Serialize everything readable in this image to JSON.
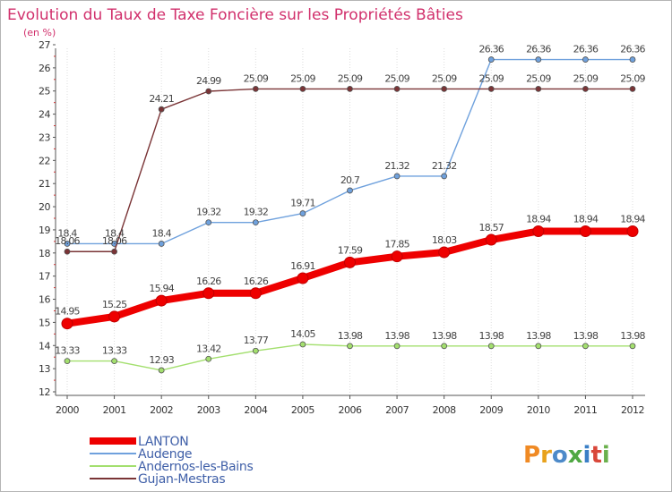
{
  "chart_data": {
    "type": "line",
    "title": "Evolution du Taux de Taxe Foncière sur les Propriétés Bâties",
    "ylabel": "(en %)",
    "xlabel": "",
    "categories": [
      "2000",
      "2001",
      "2002",
      "2003",
      "2004",
      "2005",
      "2006",
      "2007",
      "2008",
      "2009",
      "2010",
      "2011",
      "2012"
    ],
    "ylim": [
      12,
      27
    ],
    "yticks": [
      12,
      13,
      14,
      15,
      16,
      17,
      18,
      19,
      20,
      21,
      22,
      23,
      24,
      25,
      26,
      27
    ],
    "grid": "vertical-x",
    "legend_position": "bottom-left",
    "series": [
      {
        "name": "LANTON",
        "color": "#ee0000",
        "emphasis": true,
        "values": [
          14.95,
          15.25,
          15.94,
          16.26,
          16.26,
          16.91,
          17.59,
          17.85,
          18.03,
          18.57,
          18.94,
          18.94,
          18.94
        ],
        "labels": [
          "14.95",
          "15.25",
          "15.94",
          "16.26",
          "16.26",
          "16.91",
          "17.59",
          "17.85",
          "18.03",
          "18.57",
          "18.94",
          "18.94",
          "18.94"
        ]
      },
      {
        "name": "Audenge",
        "color": "#6fa1dd",
        "values": [
          18.4,
          18.4,
          18.4,
          19.32,
          19.32,
          19.71,
          20.7,
          21.32,
          21.32,
          26.36,
          26.36,
          26.36,
          26.36
        ],
        "labels": [
          "18.4",
          "18.4",
          "18.4",
          "19.32",
          "19.32",
          "19.71",
          "20.7",
          "21.32",
          "21.32",
          "26.36",
          "26.36",
          "26.36",
          "26.36"
        ]
      },
      {
        "name": "Andernos-les-Bains",
        "color": "#a3df6e",
        "values": [
          13.33,
          13.33,
          12.93,
          13.42,
          13.77,
          14.05,
          13.98,
          13.98,
          13.98,
          13.98,
          13.98,
          13.98,
          13.98
        ],
        "labels": [
          "13.33",
          "13.33",
          "12.93",
          "13.42",
          "13.77",
          "14.05",
          "13.98",
          "13.98",
          "13.98",
          "13.98",
          "13.98",
          "13.98",
          "13.98"
        ]
      },
      {
        "name": "Gujan-Mestras",
        "color": "#7a3436",
        "values": [
          18.06,
          18.06,
          24.21,
          24.99,
          25.09,
          25.09,
          25.09,
          25.09,
          25.09,
          25.09,
          25.09,
          25.09,
          25.09
        ],
        "labels": [
          "18.06",
          "18.06",
          "24.21",
          "24.99",
          "25.09",
          "25.09",
          "25.09",
          "25.09",
          "25.09",
          "25.09",
          "25.09",
          "25.09",
          "25.09"
        ]
      }
    ]
  },
  "brand": {
    "text": "Proxiti"
  }
}
